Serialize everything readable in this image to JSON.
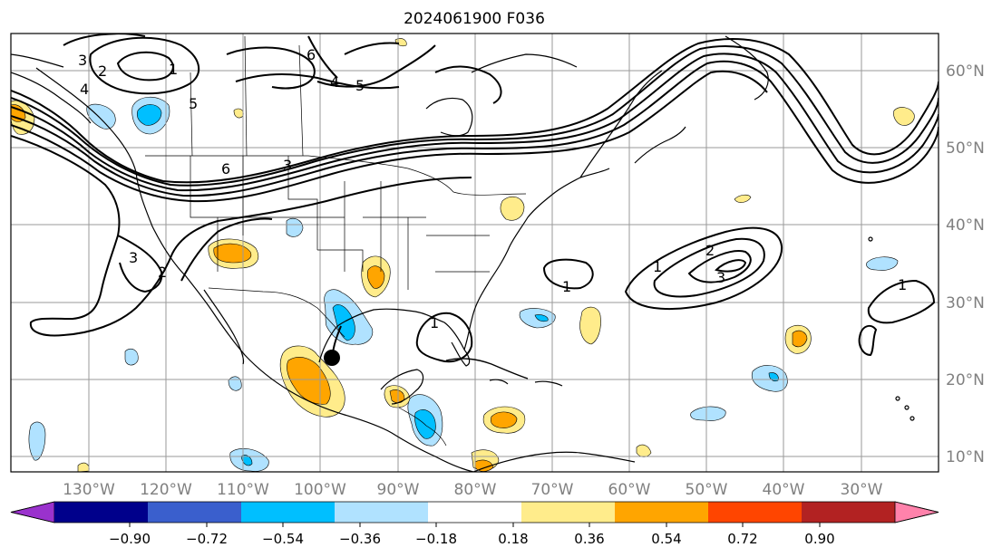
{
  "title": "2024061900 F036",
  "lon_labels": [
    "130°W",
    "120°W",
    "110°W",
    "100°W",
    "90°W",
    "80°W",
    "70°W",
    "60°W",
    "50°W",
    "40°W",
    "30°W"
  ],
  "lat_labels": [
    "60°N",
    "50°N",
    "40°N",
    "30°N",
    "20°N",
    "10°N"
  ],
  "contour_labels": [
    "6",
    "4",
    "3",
    "2",
    "1",
    "5",
    "4",
    "3",
    "6",
    "5",
    "3",
    "2",
    "1",
    "1",
    "1",
    "3",
    "2",
    "1"
  ],
  "colorbar": {
    "ticks": [
      "−0.90",
      "−0.72",
      "−0.54",
      "−0.36",
      "−0.18",
      "0.18",
      "0.36",
      "0.54",
      "0.72",
      "0.90"
    ],
    "colors": [
      "#9a32cd",
      "#00008b",
      "#3a5fcd",
      "#00bfff",
      "#b0e2ff",
      "#ffffff",
      "#ffec8b",
      "#ffa500",
      "#ff4500",
      "#b22222",
      "#ff82ab"
    ]
  },
  "colors": {
    "axis": "#000000",
    "grid": "#9a9a9a",
    "coast": "#000000",
    "tick_label": "#808080"
  }
}
